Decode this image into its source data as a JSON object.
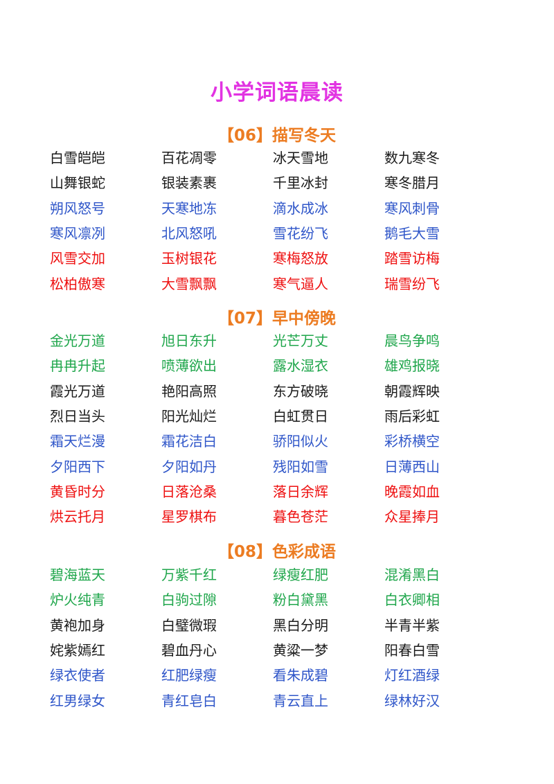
{
  "title": "小学词语晨读",
  "colors": {
    "title": "#e233e2",
    "section": "#ec7c22",
    "black": "#1a1a1a",
    "blue": "#2f56c9",
    "red": "#ee1010",
    "green": "#1fa64b"
  },
  "sections": [
    {
      "heading": "【06】描写冬天",
      "rows": [
        {
          "color": "black",
          "words": [
            "白雪皑皑",
            "百花凋零",
            "冰天雪地",
            "数九寒冬"
          ]
        },
        {
          "color": "black",
          "words": [
            "山舞银蛇",
            "银装素裹",
            "千里冰封",
            "寒冬腊月"
          ]
        },
        {
          "color": "blue",
          "words": [
            "朔风怒号",
            "天寒地冻",
            "滴水成冰",
            "寒风刺骨"
          ]
        },
        {
          "color": "blue",
          "words": [
            "寒风凛冽",
            "北风怒吼",
            "雪花纷飞",
            "鹅毛大雪"
          ]
        },
        {
          "color": "red",
          "words": [
            "风雪交加",
            "玉树银花",
            "寒梅怒放",
            "踏雪访梅"
          ]
        },
        {
          "color": "red",
          "words": [
            "松柏傲寒",
            "大雪飘飘",
            "寒气逼人",
            "瑞雪纷飞"
          ]
        }
      ]
    },
    {
      "heading": "【07】早中傍晚",
      "rows": [
        {
          "color": "green",
          "words": [
            "金光万道",
            "旭日东升",
            "光芒万丈",
            "晨鸟争鸣"
          ]
        },
        {
          "color": "green",
          "words": [
            "冉冉升起",
            "喷薄欲出",
            "露水湿衣",
            "雄鸡报晓"
          ]
        },
        {
          "color": "black",
          "words": [
            "霞光万道",
            "艳阳高照",
            "东方破晓",
            "朝霞辉映"
          ]
        },
        {
          "color": "black",
          "words": [
            "烈日当头",
            "阳光灿烂",
            "白虹贯日",
            "雨后彩虹"
          ]
        },
        {
          "color": "blue",
          "words": [
            "霜天烂漫",
            "霜花洁白",
            "骄阳似火",
            "彩桥横空"
          ]
        },
        {
          "color": "blue",
          "words": [
            "夕阳西下",
            "夕阳如丹",
            "残阳如雪",
            "日薄西山"
          ]
        },
        {
          "color": "red",
          "words": [
            "黄昏时分",
            "日落沧桑",
            "落日余辉",
            "晚霞如血"
          ]
        },
        {
          "color": "red",
          "words": [
            "烘云托月",
            "星罗棋布",
            "暮色苍茫",
            "众星捧月"
          ]
        }
      ]
    },
    {
      "heading": "【08】色彩成语",
      "rows": [
        {
          "color": "green",
          "words": [
            "碧海蓝天",
            "万紫千红",
            "绿瘦红肥",
            "混淆黑白"
          ]
        },
        {
          "color": "green",
          "words": [
            "炉火纯青",
            "白驹过隙",
            "粉白黛黑",
            "白衣卿相"
          ]
        },
        {
          "color": "black",
          "words": [
            "黄袍加身",
            "白璧微瑕",
            "黑白分明",
            "半青半紫"
          ]
        },
        {
          "color": "black",
          "words": [
            "姹紫嫣红",
            "碧血丹心",
            "黄粱一梦",
            "阳春白雪"
          ]
        },
        {
          "color": "blue",
          "words": [
            "绿衣使者",
            "红肥绿瘦",
            "看朱成碧",
            "灯红酒绿"
          ]
        },
        {
          "color": "blue",
          "words": [
            "红男绿女",
            "青红皂白",
            "青云直上",
            "绿林好汉"
          ]
        }
      ]
    }
  ]
}
